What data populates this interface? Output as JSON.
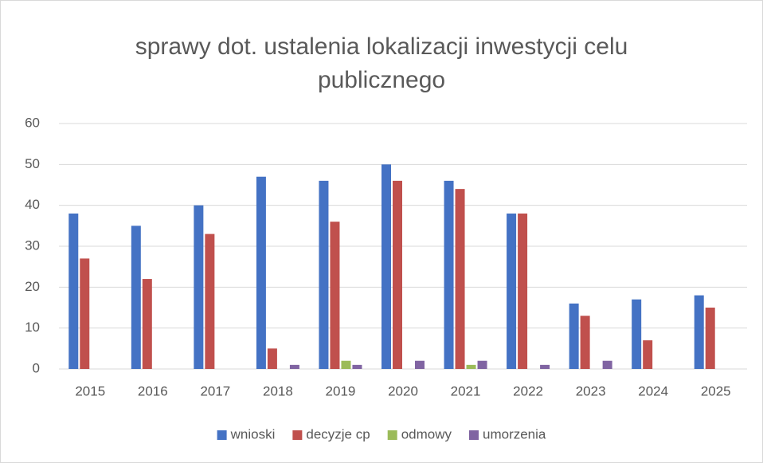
{
  "chart_data": {
    "type": "bar",
    "title": "sprawy dot. ustalenia lokalizacji inwestycji celu publicznego",
    "categories": [
      "2015",
      "2016",
      "2017",
      "2018",
      "2019",
      "2020",
      "2021",
      "2022",
      "2023",
      "2024",
      "2025"
    ],
    "series": [
      {
        "name": "wnioski",
        "color": "#4472c4",
        "values": [
          38,
          35,
          40,
          47,
          46,
          50,
          46,
          38,
          16,
          17,
          18
        ]
      },
      {
        "name": "decyzje cp",
        "color": "#c0504d",
        "values": [
          27,
          22,
          33,
          5,
          36,
          46,
          44,
          38,
          13,
          7,
          15
        ]
      },
      {
        "name": "odmowy",
        "color": "#9bbb59",
        "values": [
          0,
          0,
          0,
          0,
          2,
          0,
          1,
          0,
          0,
          0,
          0
        ]
      },
      {
        "name": "umorzenia",
        "color": "#8064a2",
        "values": [
          0,
          0,
          0,
          1,
          1,
          2,
          2,
          1,
          2,
          0,
          0
        ]
      }
    ],
    "ylim": [
      0,
      60
    ],
    "yticks": [
      0,
      10,
      20,
      30,
      40,
      50,
      60
    ],
    "grid": true,
    "legend": "bottom"
  }
}
